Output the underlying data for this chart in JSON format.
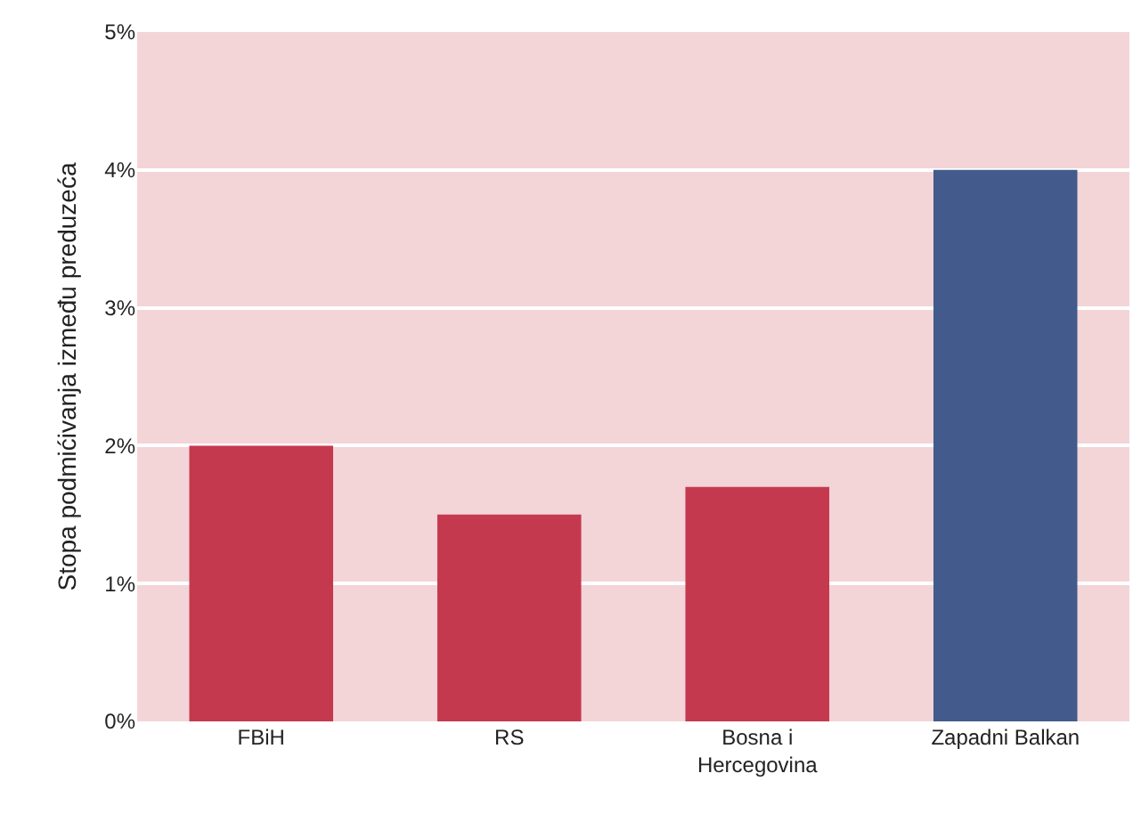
{
  "chart_data": {
    "type": "bar",
    "ylabel": "Stopa podmićivanja između preduzeća",
    "categories": [
      "FBiH",
      "RS",
      "Bosna i Hercegovina",
      "Zapadni Balkan"
    ],
    "values": [
      2.0,
      1.5,
      1.7,
      4.0
    ],
    "colors": [
      "#c5394f",
      "#c5394f",
      "#c5394f",
      "#425b8c"
    ],
    "ylim": [
      0,
      5
    ],
    "yticks": [
      {
        "value": 0,
        "label": "0%"
      },
      {
        "value": 1,
        "label": "1%"
      },
      {
        "value": 2,
        "label": "2%"
      },
      {
        "value": 3,
        "label": "3%"
      },
      {
        "value": 4,
        "label": "4%"
      },
      {
        "value": 5,
        "label": "5%"
      }
    ],
    "grid": "y"
  }
}
